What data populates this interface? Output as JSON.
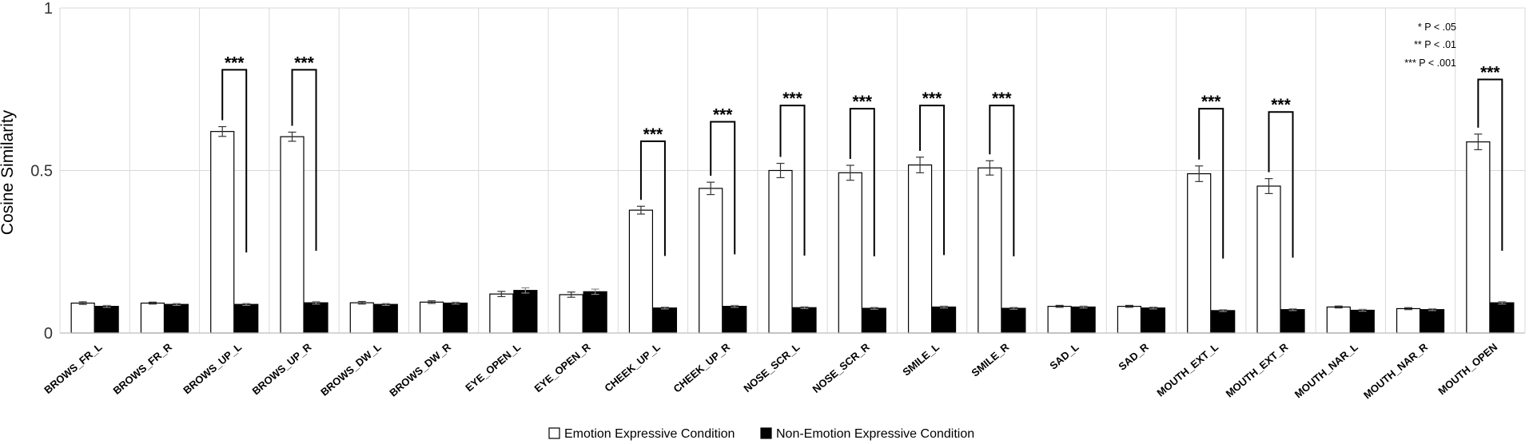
{
  "chart_data": {
    "type": "bar",
    "title": "",
    "xlabel": "",
    "ylabel": "Cosine Similarity",
    "ylim": [
      0,
      1
    ],
    "yticks": [
      {
        "value": 0,
        "label": "0"
      },
      {
        "value": 0.5,
        "label": "0.5"
      },
      {
        "value": 1,
        "label": "1"
      }
    ],
    "grid": true,
    "legend_position": "bottom-center",
    "categories": [
      "BROWS_FR_L",
      "BROWS_FR_R",
      "BROWS_UP_L",
      "BROWS_UP_R",
      "BROWS_DW_L",
      "BROWS_DW_R",
      "EYE_OPEN_L",
      "EYE_OPEN_R",
      "CHEEK_UP_L",
      "CHEEK_UP_R",
      "NOSE_SCR_L",
      "NOSE_SCR_R",
      "SMILE_L",
      "SMILE_R",
      "SAD_L",
      "SAD_R",
      "MOUTH_EXT_L",
      "MOUTH_EXT_R",
      "MOUTH_NAR_L",
      "MOUTH_NAR_R",
      "MOUTH_OPEN"
    ],
    "series": [
      {
        "name": "Emotion Expressive Condition",
        "color": "#ffffff",
        "values": [
          0.092,
          0.092,
          0.62,
          0.604,
          0.093,
          0.095,
          0.12,
          0.118,
          0.378,
          0.445,
          0.5,
          0.493,
          0.517,
          0.508,
          0.082,
          0.082,
          0.49,
          0.452,
          0.08,
          0.075,
          0.588
        ],
        "errors": [
          0.004,
          0.003,
          0.015,
          0.014,
          0.004,
          0.004,
          0.008,
          0.008,
          0.012,
          0.019,
          0.022,
          0.023,
          0.024,
          0.022,
          0.003,
          0.003,
          0.024,
          0.023,
          0.003,
          0.003,
          0.024
        ]
      },
      {
        "name": "Non-Emotion Expressive Condition",
        "color": "#000000",
        "values": [
          0.082,
          0.088,
          0.088,
          0.093,
          0.088,
          0.092,
          0.131,
          0.127,
          0.077,
          0.082,
          0.078,
          0.076,
          0.08,
          0.076,
          0.08,
          0.077,
          0.069,
          0.072,
          0.07,
          0.072,
          0.093
        ],
        "errors": [
          0.003,
          0.003,
          0.003,
          0.004,
          0.003,
          0.003,
          0.008,
          0.008,
          0.003,
          0.003,
          0.003,
          0.003,
          0.003,
          0.003,
          0.003,
          0.003,
          0.003,
          0.003,
          0.003,
          0.003,
          0.004
        ]
      }
    ],
    "significance": [
      {
        "category": "BROWS_UP_L",
        "label": "***",
        "top": 0.81
      },
      {
        "category": "BROWS_UP_R",
        "label": "***",
        "top": 0.81
      },
      {
        "category": "CHEEK_UP_L",
        "label": "***",
        "top": 0.59
      },
      {
        "category": "CHEEK_UP_R",
        "label": "***",
        "top": 0.65
      },
      {
        "category": "NOSE_SCR_L",
        "label": "***",
        "top": 0.7
      },
      {
        "category": "NOSE_SCR_R",
        "label": "***",
        "top": 0.69
      },
      {
        "category": "SMILE_L",
        "label": "***",
        "top": 0.7
      },
      {
        "category": "SMILE_R",
        "label": "***",
        "top": 0.7
      },
      {
        "category": "MOUTH_EXT_L",
        "label": "***",
        "top": 0.69
      },
      {
        "category": "MOUTH_EXT_R",
        "label": "***",
        "top": 0.68
      },
      {
        "category": "MOUTH_OPEN",
        "label": "***",
        "top": 0.78
      }
    ],
    "annotations": [
      "* P < .05",
      "** P < .01",
      "*** P < .001"
    ]
  }
}
